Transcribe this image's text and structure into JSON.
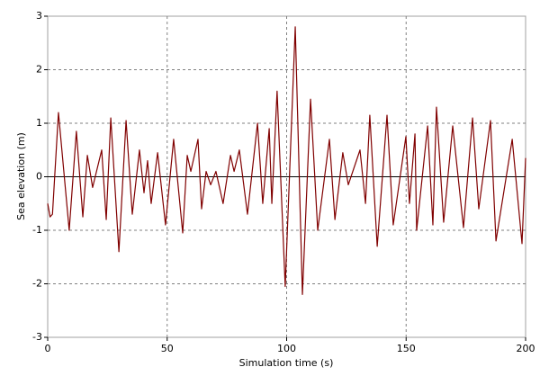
{
  "chart_data": {
    "type": "line",
    "xlabel": "Simulation time (s)",
    "ylabel": "Sea elevation (m)",
    "x": [
      0,
      1,
      2,
      4.5,
      9,
      12,
      14.7,
      16.6,
      18.8,
      22.6,
      24.5,
      26.4,
      29.8,
      32.8,
      35.4,
      38.4,
      40.3,
      41.8,
      43.3,
      46,
      49.3,
      52.7,
      56.5,
      58.4,
      59.9,
      62.9,
      64.4,
      66.3,
      68.2,
      70.4,
      73.4,
      76.5,
      78,
      80.2,
      83.6,
      87.8,
      90,
      92.7,
      93.8,
      96,
      99.4,
      103.6,
      106.6,
      110,
      113,
      117.9,
      120.2,
      123.5,
      125.8,
      130.7,
      133,
      134.8,
      137.9,
      142,
      144.6,
      149.9,
      151.4,
      153.7,
      154.4,
      159,
      161.2,
      162.7,
      165.7,
      169.5,
      174,
      177.8,
      180.4,
      185.3,
      187.6,
      194.4,
      198.5,
      200
    ],
    "series": [
      {
        "name": "Sea elevation",
        "color": "#800000",
        "values": [
          -0.5,
          -0.75,
          -0.7,
          1.2,
          -1.0,
          0.85,
          -0.75,
          0.4,
          -0.2,
          0.5,
          -0.8,
          1.1,
          -1.4,
          1.05,
          -0.7,
          0.5,
          -0.3,
          0.3,
          -0.5,
          0.45,
          -0.9,
          0.7,
          -1.05,
          0.4,
          0.1,
          0.7,
          -0.6,
          0.1,
          -0.15,
          0.1,
          -0.5,
          0.4,
          0.1,
          0.5,
          -0.7,
          1.0,
          -0.5,
          0.9,
          -0.5,
          1.6,
          -2.05,
          2.8,
          -2.2,
          1.45,
          -1.0,
          0.7,
          -0.8,
          0.45,
          -0.15,
          0.5,
          -0.5,
          1.15,
          -1.3,
          1.15,
          -0.9,
          0.75,
          -0.5,
          0.8,
          -1.0,
          0.95,
          -0.9,
          1.3,
          -0.85,
          0.95,
          -0.95,
          1.1,
          -0.6,
          1.05,
          -1.2,
          0.7,
          -1.25,
          0.35
        ]
      }
    ],
    "xlim": [
      0,
      200
    ],
    "xticks": [
      0,
      50,
      100,
      150,
      200
    ],
    "ylim": [
      -3,
      3
    ],
    "yticks": [
      -3,
      -2,
      -1,
      0,
      1,
      2,
      3
    ],
    "grid": true
  }
}
